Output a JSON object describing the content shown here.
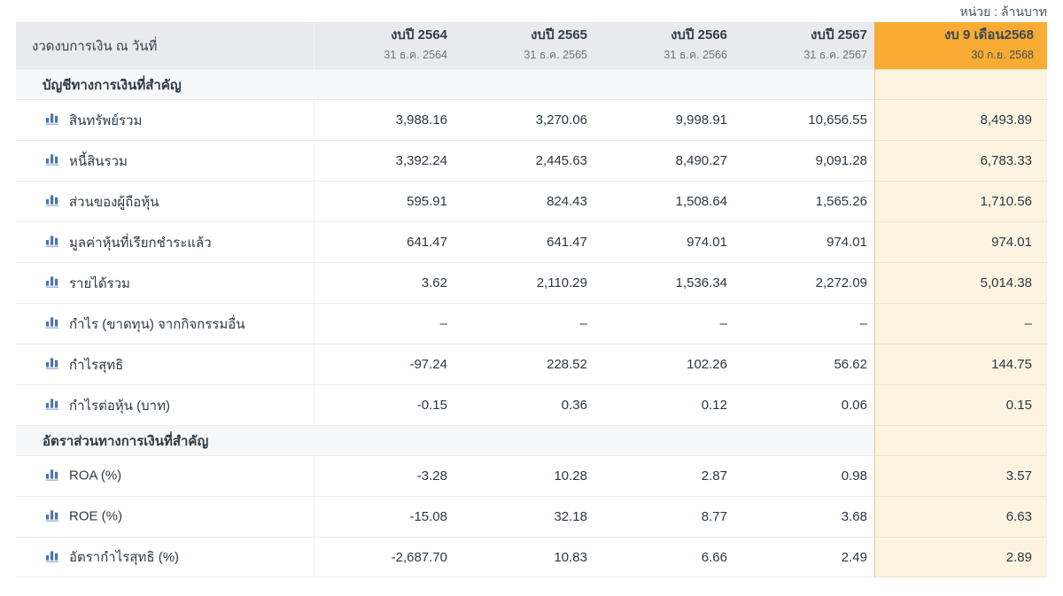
{
  "unit_label": "หน่วย : ล้านบาท",
  "colors": {
    "highlight_header": "#F8AC33",
    "highlight_column_bg": "#FDF3E1",
    "header_bg": "#E8EAED",
    "section_bg": "#F6F7F8",
    "icon_blue": "#4A74B4",
    "text_dark": "#2E3A46"
  },
  "icons": {
    "row_icon": "bar-chart-icon"
  },
  "table": {
    "period_header": "งวดงบการเงิน ณ วันที่",
    "columns": [
      {
        "title": "งบปี 2564",
        "date": "31 ธ.ค. 2564",
        "highlight": false
      },
      {
        "title": "งบปี 2565",
        "date": "31 ธ.ค. 2565",
        "highlight": false
      },
      {
        "title": "งบปี 2566",
        "date": "31 ธ.ค. 2566",
        "highlight": false
      },
      {
        "title": "งบปี 2567",
        "date": "31 ธ.ค. 2567",
        "highlight": false
      },
      {
        "title": "งบ 9 เดือน2568",
        "date": "30 ก.ย. 2568",
        "highlight": true
      }
    ],
    "sections": [
      {
        "title": "บัญชีทางการเงินที่สำคัญ",
        "rows": [
          {
            "label": "สินทรัพย์รวม",
            "values": [
              "3,988.16",
              "3,270.06",
              "9,998.91",
              "10,656.55",
              "8,493.89"
            ]
          },
          {
            "label": "หนี้สินรวม",
            "values": [
              "3,392.24",
              "2,445.63",
              "8,490.27",
              "9,091.28",
              "6,783.33"
            ]
          },
          {
            "label": "ส่วนของผู้ถือหุ้น",
            "values": [
              "595.91",
              "824.43",
              "1,508.64",
              "1,565.26",
              "1,710.56"
            ]
          },
          {
            "label": "มูลค่าหุ้นที่เรียกชำระแล้ว",
            "values": [
              "641.47",
              "641.47",
              "974.01",
              "974.01",
              "974.01"
            ]
          },
          {
            "label": "รายได้รวม",
            "values": [
              "3.62",
              "2,110.29",
              "1,536.34",
              "2,272.09",
              "5,014.38"
            ]
          },
          {
            "label": "กำไร (ขาดทุน) จากกิจกรรมอื่น",
            "values": [
              "–",
              "–",
              "–",
              "–",
              "–"
            ]
          },
          {
            "label": "กำไรสุทธิ",
            "values": [
              "-97.24",
              "228.52",
              "102.26",
              "56.62",
              "144.75"
            ]
          },
          {
            "label": "กำไรต่อหุ้น (บาท)",
            "values": [
              "-0.15",
              "0.36",
              "0.12",
              "0.06",
              "0.15"
            ]
          }
        ]
      },
      {
        "title": "อัตราส่วนทางการเงินที่สำคัญ",
        "rows": [
          {
            "label": "ROA (%)",
            "values": [
              "-3.28",
              "10.28",
              "2.87",
              "0.98",
              "3.57"
            ]
          },
          {
            "label": "ROE (%)",
            "values": [
              "-15.08",
              "32.18",
              "8.77",
              "3.68",
              "6.63"
            ]
          },
          {
            "label": "อัตรากำไรสุทธิ (%)",
            "values": [
              "-2,687.70",
              "10.83",
              "6.66",
              "2.49",
              "2.89"
            ]
          }
        ]
      }
    ]
  }
}
